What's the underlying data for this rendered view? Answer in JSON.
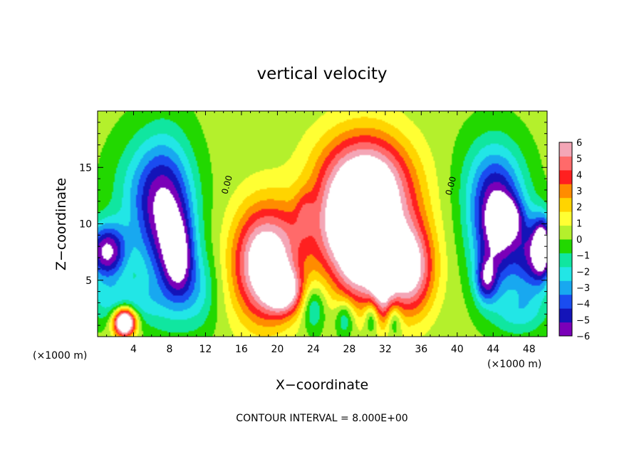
{
  "chart_data": {
    "type": "heatmap",
    "title": "vertical velocity",
    "xlabel": "X−coordinate",
    "ylabel": "Z−coordinate",
    "xunit_left": "(×1000 m)",
    "xunit_right": "(×1000 m)",
    "footer": "CONTOUR INTERVAL = 8.000E+00",
    "xlim": [
      0,
      50
    ],
    "ylim": [
      0,
      20
    ],
    "x_ticks": [
      4,
      8,
      12,
      16,
      20,
      24,
      28,
      32,
      36,
      40,
      44,
      48
    ],
    "x_tick_labels": [
      "4",
      "8",
      "12",
      "16",
      "20",
      "24",
      "28",
      "32",
      "36",
      "40",
      "44",
      "48"
    ],
    "y_ticks": [
      5,
      10,
      15
    ],
    "y_tick_labels": [
      "5",
      "10",
      "15"
    ],
    "colorbar": {
      "range": [
        -6,
        6
      ],
      "labels": [
        "6",
        "5",
        "4",
        "3",
        "2",
        "1",
        "0",
        "−1",
        "−2",
        "−3",
        "−4",
        "−5",
        "−6"
      ],
      "label_values": [
        6,
        5,
        4,
        3,
        2,
        1,
        0,
        -1,
        -2,
        -3,
        -4,
        -5,
        -6
      ],
      "colors": [
        "#f4a6b6",
        "#ff6a6a",
        "#ff2020",
        "#ff8c00",
        "#ffd400",
        "#ffff33",
        "#b4f02c",
        "#22d800",
        "#10e6a0",
        "#22e6e6",
        "#18a8f0",
        "#1a4cf0",
        "#1414b8",
        "#7a00b8"
      ]
    },
    "contour_labels": [
      {
        "text": "0.00",
        "x": 14.7,
        "y": 13.4
      },
      {
        "text": "0.00",
        "x": 39.6,
        "y": 13.3
      }
    ],
    "blobs": [
      {
        "x": 1.0,
        "y": 7.5,
        "rx": 2.2,
        "ry": 2.5,
        "v": -6.5
      },
      {
        "x": 7.8,
        "y": 9.5,
        "rx": 3.0,
        "ry": 7.0,
        "v": -5.0
      },
      {
        "x": 9.0,
        "y": 7.0,
        "rx": 1.6,
        "ry": 3.5,
        "v": -4.0
      },
      {
        "x": 5.8,
        "y": 12.8,
        "rx": 4.0,
        "ry": 5.0,
        "v": -3.0
      },
      {
        "x": 2.5,
        "y": 3.0,
        "rx": 4.0,
        "ry": 2.0,
        "v": -2.5
      },
      {
        "x": 3.0,
        "y": 1.3,
        "rx": 1.2,
        "ry": 1.2,
        "v": 11.0
      },
      {
        "x": 11.2,
        "y": 4.0,
        "rx": 2.2,
        "ry": 3.5,
        "v": -2.0
      },
      {
        "x": 18.5,
        "y": 6.5,
        "rx": 3.4,
        "ry": 5.0,
        "v": 7.5
      },
      {
        "x": 20.8,
        "y": 4.0,
        "rx": 2.0,
        "ry": 2.0,
        "v": 5.0
      },
      {
        "x": 30.3,
        "y": 12.3,
        "rx": 4.8,
        "ry": 5.0,
        "v": 8.0
      },
      {
        "x": 29.0,
        "y": 6.5,
        "rx": 2.5,
        "ry": 4.0,
        "v": 5.5
      },
      {
        "x": 34.5,
        "y": 6.0,
        "rx": 2.8,
        "ry": 4.0,
        "v": 7.0
      },
      {
        "x": 31.5,
        "y": 4.0,
        "rx": 1.5,
        "ry": 3.0,
        "v": 4.0
      },
      {
        "x": 24.0,
        "y": 2.5,
        "rx": 1.2,
        "ry": 2.0,
        "v": -2.5
      },
      {
        "x": 27.5,
        "y": 1.6,
        "rx": 1.0,
        "ry": 1.6,
        "v": -2.5
      },
      {
        "x": 30.5,
        "y": 1.8,
        "rx": 0.8,
        "ry": 1.6,
        "v": -3.0
      },
      {
        "x": 33.0,
        "y": 1.5,
        "rx": 0.8,
        "ry": 1.5,
        "v": -2.5
      },
      {
        "x": 23.0,
        "y": 11.0,
        "rx": 1.0,
        "ry": 2.0,
        "v": 1.5
      },
      {
        "x": 22.0,
        "y": 9.0,
        "rx": 2.5,
        "ry": 3.5,
        "v": 1.5
      },
      {
        "x": 26.0,
        "y": 9.0,
        "rx": 2.5,
        "ry": 4.5,
        "v": 3.0
      },
      {
        "x": 28.0,
        "y": 15.0,
        "rx": 5.0,
        "ry": 4.0,
        "v": 1.5
      },
      {
        "x": 44.5,
        "y": 9.0,
        "rx": 2.8,
        "ry": 5.0,
        "v": -6.0
      },
      {
        "x": 45.5,
        "y": 10.5,
        "rx": 1.5,
        "ry": 1.6,
        "v": -4.0
      },
      {
        "x": 43.2,
        "y": 5.0,
        "rx": 1.2,
        "ry": 2.0,
        "v": -4.0
      },
      {
        "x": 44.0,
        "y": 13.5,
        "rx": 3.5,
        "ry": 4.5,
        "v": -3.0
      },
      {
        "x": 48.5,
        "y": 7.0,
        "rx": 2.0,
        "ry": 3.5,
        "v": -4.5
      },
      {
        "x": 49.5,
        "y": 8.0,
        "rx": 1.0,
        "ry": 2.5,
        "v": -6.0
      },
      {
        "x": 47.0,
        "y": 2.0,
        "rx": 3.0,
        "ry": 2.0,
        "v": -2.0
      }
    ]
  }
}
